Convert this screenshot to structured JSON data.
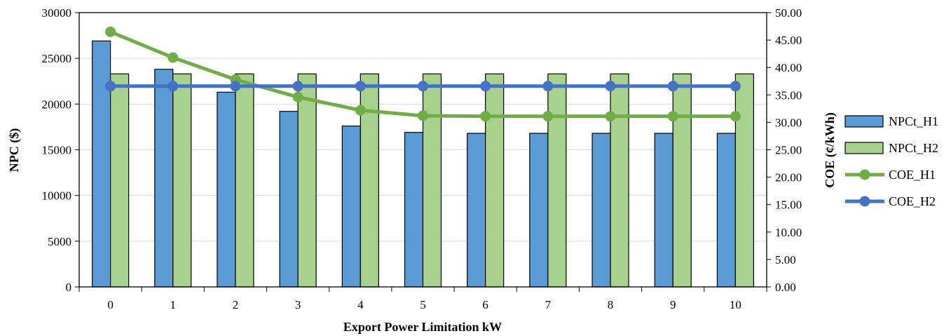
{
  "chart_data": {
    "type": "bar",
    "categories": [
      "0",
      "1",
      "2",
      "3",
      "4",
      "5",
      "6",
      "7",
      "8",
      "9",
      "10"
    ],
    "xlabel": "Export Power Limitation kW",
    "ylabel": "NPC ($)",
    "y2label": "COE (¢/kWh)",
    "ylim": [
      0,
      30000
    ],
    "y2lim": [
      0,
      50
    ],
    "yticks": [
      "0",
      "5000",
      "10000",
      "15000",
      "20000",
      "25000",
      "30000"
    ],
    "y2ticks": [
      "0.00",
      "5.00",
      "10.00",
      "15.00",
      "20.00",
      "25.00",
      "30.00",
      "35.00",
      "40.00",
      "45.00",
      "50.00"
    ],
    "grid": true,
    "legend_position": "right",
    "series": [
      {
        "name": "NPCt_H1",
        "kind": "bar",
        "axis": "left",
        "color": "#5b9bd5",
        "values": [
          26900,
          23800,
          21300,
          19200,
          17600,
          16900,
          16800,
          16800,
          16800,
          16800,
          16800
        ]
      },
      {
        "name": "NPCt_H2",
        "kind": "bar",
        "axis": "left",
        "color": "#a9d18e",
        "values": [
          23300,
          23300,
          23300,
          23300,
          23300,
          23300,
          23300,
          23300,
          23300,
          23300,
          23300
        ]
      },
      {
        "name": "COE_H1",
        "kind": "line",
        "axis": "right",
        "color": "#70ad47",
        "values": [
          46.5,
          41.8,
          37.8,
          34.6,
          32.2,
          31.2,
          31.1,
          31.1,
          31.1,
          31.1,
          31.1
        ]
      },
      {
        "name": "COE_H2",
        "kind": "line",
        "axis": "right",
        "color": "#4472c4",
        "values": [
          36.6,
          36.6,
          36.6,
          36.6,
          36.6,
          36.6,
          36.6,
          36.6,
          36.6,
          36.6,
          36.6
        ]
      }
    ]
  }
}
